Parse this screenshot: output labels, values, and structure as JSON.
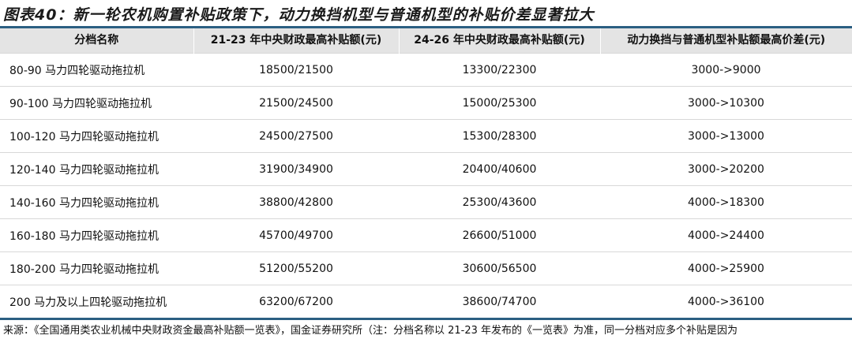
{
  "title": "图表40：新一轮农机购置补贴政策下，动力换挡机型与普通机型的补贴价差显著拉大",
  "headers": [
    "分档名称",
    "21-23 年中央财政最高补贴额(元)",
    "24-26 年中央财政最高补贴额(元)",
    "动力换挡与普通机型补贴额最高价差(元)"
  ],
  "rows": [
    [
      "80-90 马力四轮驱动拖拉机",
      "18500/21500",
      "13300/22300",
      "3000->9000"
    ],
    [
      "90-100 马力四轮驱动拖拉机",
      "21500/24500",
      "15000/25300",
      "3000->10300"
    ],
    [
      "100-120 马力四轮驱动拖拉机",
      "24500/27500",
      "15300/28300",
      "3000->13000"
    ],
    [
      "120-140 马力四轮驱动拖拉机",
      "31900/34900",
      "20400/40600",
      "3000->20200"
    ],
    [
      "140-160 马力四轮驱动拖拉机",
      "38800/42800",
      "25300/43600",
      "4000->18300"
    ],
    [
      "160-180 马力四轮驱动拖拉机",
      "45700/49700",
      "26600/51000",
      "4000->24400"
    ],
    [
      "180-200 马力四轮驱动拖拉机",
      "51200/55200",
      "30600/56500",
      "4000->25900"
    ],
    [
      "200 马力及以上四轮驱动拖拉机",
      "63200/67200",
      "38600/74700",
      "4000->36100"
    ]
  ],
  "source": "来源：《全国通用类农业机械中央财政资金最高补贴额一览表》，国金证券研究所（注：分档名称以 21-23 年发布的《一览表》为准，同一分档对应多个补贴是因为"
}
